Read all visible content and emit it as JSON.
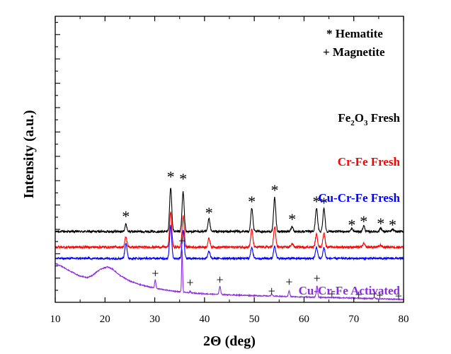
{
  "chart_data": {
    "type": "line",
    "xlabel": "2Θ (deg)",
    "ylabel": "Intensity (a.u.)",
    "xlim": [
      10,
      80
    ],
    "xticks": [
      10,
      20,
      30,
      40,
      50,
      60,
      70,
      80
    ],
    "grid": false,
    "legend": {
      "position": "top-right",
      "entries": [
        {
          "text": "* Hematite"
        },
        {
          "text": "+ Magnetite"
        }
      ]
    },
    "series": [
      {
        "name": "Fe2O3 Fresh",
        "color": "#000000",
        "label_parts": [
          "Fe",
          "2",
          "O",
          "3",
          " Fresh"
        ],
        "baseline_intensity": 100,
        "noise": 1.5,
        "peaks": [
          {
            "x": 24.2,
            "h": 10,
            "w": 0.28
          },
          {
            "x": 33.2,
            "h": 62,
            "w": 0.3
          },
          {
            "x": 35.7,
            "h": 56,
            "w": 0.3
          },
          {
            "x": 40.9,
            "h": 18,
            "w": 0.28
          },
          {
            "x": 49.5,
            "h": 33,
            "w": 0.3
          },
          {
            "x": 54.1,
            "h": 48,
            "w": 0.3
          },
          {
            "x": 57.6,
            "h": 7,
            "w": 0.28
          },
          {
            "x": 62.5,
            "h": 33,
            "w": 0.3
          },
          {
            "x": 64.0,
            "h": 33,
            "w": 0.3
          },
          {
            "x": 69.6,
            "h": 4,
            "w": 0.28
          },
          {
            "x": 72.0,
            "h": 8,
            "w": 0.28
          },
          {
            "x": 75.4,
            "h": 5,
            "w": 0.28
          },
          {
            "x": 77.8,
            "h": 3,
            "w": 0.28
          }
        ],
        "markers": [
          {
            "x": 24.2,
            "y": 124,
            "symbol": "*"
          },
          {
            "x": 33.2,
            "y": 180,
            "symbol": "*"
          },
          {
            "x": 35.7,
            "y": 177,
            "symbol": "*"
          },
          {
            "x": 40.9,
            "y": 129,
            "symbol": "*"
          },
          {
            "x": 49.5,
            "y": 145,
            "symbol": "*"
          },
          {
            "x": 54.1,
            "y": 161,
            "symbol": "*"
          },
          {
            "x": 57.6,
            "y": 120,
            "symbol": "*"
          },
          {
            "x": 62.5,
            "y": 145,
            "symbol": "*"
          },
          {
            "x": 64.0,
            "y": 143,
            "symbol": "*"
          },
          {
            "x": 69.6,
            "y": 112,
            "symbol": "*"
          },
          {
            "x": 72.0,
            "y": 117,
            "symbol": "*"
          },
          {
            "x": 75.4,
            "y": 114,
            "symbol": "*"
          },
          {
            "x": 77.8,
            "y": 112,
            "symbol": "*"
          }
        ]
      },
      {
        "name": "Cr-Fe Fresh",
        "color": "#ff0000",
        "baseline_intensity": 78,
        "noise": 1.6,
        "peaks": [
          {
            "x": 24.2,
            "h": 14,
            "w": 0.3
          },
          {
            "x": 33.2,
            "h": 50,
            "w": 0.3
          },
          {
            "x": 35.7,
            "h": 44,
            "w": 0.3
          },
          {
            "x": 40.9,
            "h": 12,
            "w": 0.3
          },
          {
            "x": 49.5,
            "h": 25,
            "w": 0.3
          },
          {
            "x": 54.1,
            "h": 28,
            "w": 0.3
          },
          {
            "x": 57.6,
            "h": 5,
            "w": 0.3
          },
          {
            "x": 62.5,
            "h": 18,
            "w": 0.3
          },
          {
            "x": 64.0,
            "h": 20,
            "w": 0.3
          },
          {
            "x": 72.0,
            "h": 5,
            "w": 0.3
          },
          {
            "x": 75.4,
            "h": 3,
            "w": 0.3
          }
        ]
      },
      {
        "name": "Cu-Cr-Fe Fresh",
        "color": "#0000ff",
        "baseline_intensity": 62,
        "noise": 1.4,
        "peaks": [
          {
            "x": 24.2,
            "h": 22,
            "w": 0.3
          },
          {
            "x": 33.2,
            "h": 46,
            "w": 0.3
          },
          {
            "x": 35.7,
            "h": 40,
            "w": 0.3
          },
          {
            "x": 40.9,
            "h": 10,
            "w": 0.3
          },
          {
            "x": 49.5,
            "h": 16,
            "w": 0.3
          },
          {
            "x": 54.1,
            "h": 18,
            "w": 0.3
          },
          {
            "x": 62.5,
            "h": 16,
            "w": 0.3
          },
          {
            "x": 64.0,
            "h": 15,
            "w": 0.3
          }
        ]
      },
      {
        "name": "Cu-Cr-Fe Activated",
        "color": "#8b2be2",
        "noise": 0.7,
        "background": [
          [
            10,
            55
          ],
          [
            11.5,
            50
          ],
          [
            13,
            44
          ],
          [
            15,
            37
          ],
          [
            16.5,
            35
          ],
          [
            17.5,
            38
          ],
          [
            18.5,
            44
          ],
          [
            19.5,
            48
          ],
          [
            20.5,
            50
          ],
          [
            21.5,
            47
          ],
          [
            23,
            38
          ],
          [
            25,
            30
          ],
          [
            27,
            25
          ],
          [
            30,
            20
          ],
          [
            33,
            16.5
          ],
          [
            36,
            14
          ],
          [
            40,
            12
          ],
          [
            45,
            10.5
          ],
          [
            50,
            9.5
          ],
          [
            55,
            8.5
          ],
          [
            60,
            7.5
          ],
          [
            65,
            6.8
          ],
          [
            70,
            6
          ],
          [
            75,
            5
          ],
          [
            80,
            4
          ]
        ],
        "peaks": [
          {
            "x": 30.1,
            "h": 12,
            "w": 0.18
          },
          {
            "x": 35.5,
            "h": 60,
            "w": 0.14
          },
          {
            "x": 37.1,
            "h": 2,
            "w": 0.15
          },
          {
            "x": 43.1,
            "h": 12,
            "w": 0.2
          },
          {
            "x": 53.5,
            "h": 3,
            "w": 0.2
          },
          {
            "x": 57.0,
            "h": 8,
            "w": 0.2
          },
          {
            "x": 62.6,
            "h": 16,
            "w": 0.2
          },
          {
            "x": 74.1,
            "h": 2,
            "w": 0.2
          }
        ],
        "markers": [
          {
            "x": 30.1,
            "y": 41,
            "symbol": "+"
          },
          {
            "x": 35.5,
            "y": 87,
            "symbol": "+"
          },
          {
            "x": 37.1,
            "y": 28,
            "symbol": "+"
          },
          {
            "x": 43.1,
            "y": 32,
            "symbol": "+"
          },
          {
            "x": 53.5,
            "y": 16,
            "symbol": "+"
          },
          {
            "x": 57.0,
            "y": 29,
            "symbol": "+"
          },
          {
            "x": 62.6,
            "y": 34,
            "symbol": "+"
          },
          {
            "x": 65.6,
            "y": 12,
            "symbol": "+"
          },
          {
            "x": 71.0,
            "y": 11,
            "symbol": "+"
          },
          {
            "x": 74.1,
            "y": 12,
            "symbol": "+"
          },
          {
            "x": 75.2,
            "y": 10,
            "symbol": "+"
          },
          {
            "x": 79.0,
            "y": 9,
            "symbol": "+"
          }
        ]
      }
    ]
  }
}
